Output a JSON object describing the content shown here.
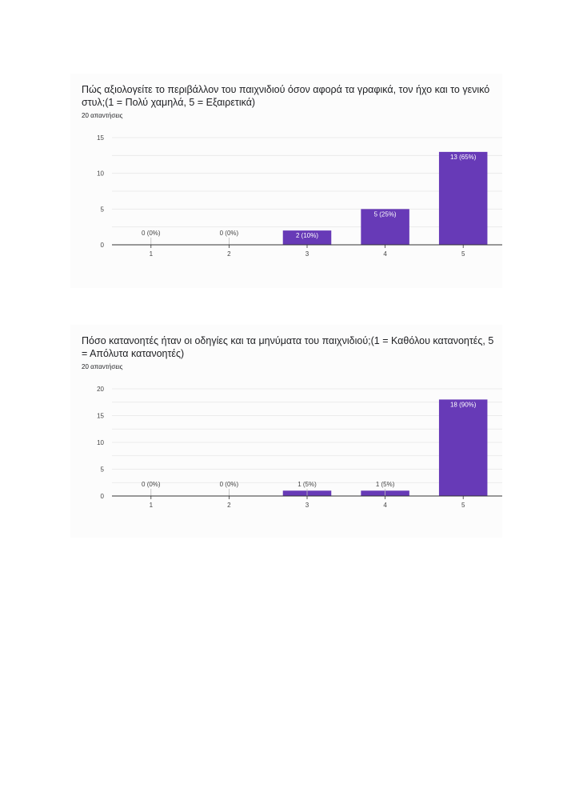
{
  "colors": {
    "bar": "#673ab7",
    "grid": "#e6e6e6",
    "axis": "#333333",
    "label_dark": "#444444",
    "label_light": "#ffffff",
    "card_bg": "#fcfcfc"
  },
  "questions": [
    {
      "title": "Πώς αξιολογείτε το περιβάλλον του παιχνιδιού όσον αφορά τα γραφικά, τον ήχο και το γενικό στυλ;(1 = Πολύ χαμηλά, 5 = Εξαιρετικά)",
      "responses": "20 απαντήσεις"
    },
    {
      "title": "Πόσο κατανοητές ήταν οι οδηγίες και τα μηνύματα του παιχνιδιού;(1 = Καθόλου κατανοητές, 5 = Απόλυτα κατανοητές)",
      "responses": "20 απαντήσεις"
    }
  ],
  "chart_data": [
    {
      "type": "bar",
      "categories": [
        "1",
        "2",
        "3",
        "4",
        "5"
      ],
      "values": [
        0,
        0,
        2,
        5,
        13
      ],
      "data_labels": [
        "0 (0%)",
        "0 (0%)",
        "2 (10%)",
        "5 (25%)",
        "13 (65%)"
      ],
      "ylim": [
        0,
        15
      ],
      "yticks": [
        0,
        5,
        10,
        15
      ],
      "grid": true
    },
    {
      "type": "bar",
      "categories": [
        "1",
        "2",
        "3",
        "4",
        "5"
      ],
      "values": [
        0,
        0,
        1,
        1,
        18
      ],
      "data_labels": [
        "0 (0%)",
        "0 (0%)",
        "1 (5%)",
        "1 (5%)",
        "18 (90%)"
      ],
      "ylim": [
        0,
        20
      ],
      "yticks": [
        0,
        5,
        10,
        15,
        20
      ],
      "grid": true
    }
  ]
}
